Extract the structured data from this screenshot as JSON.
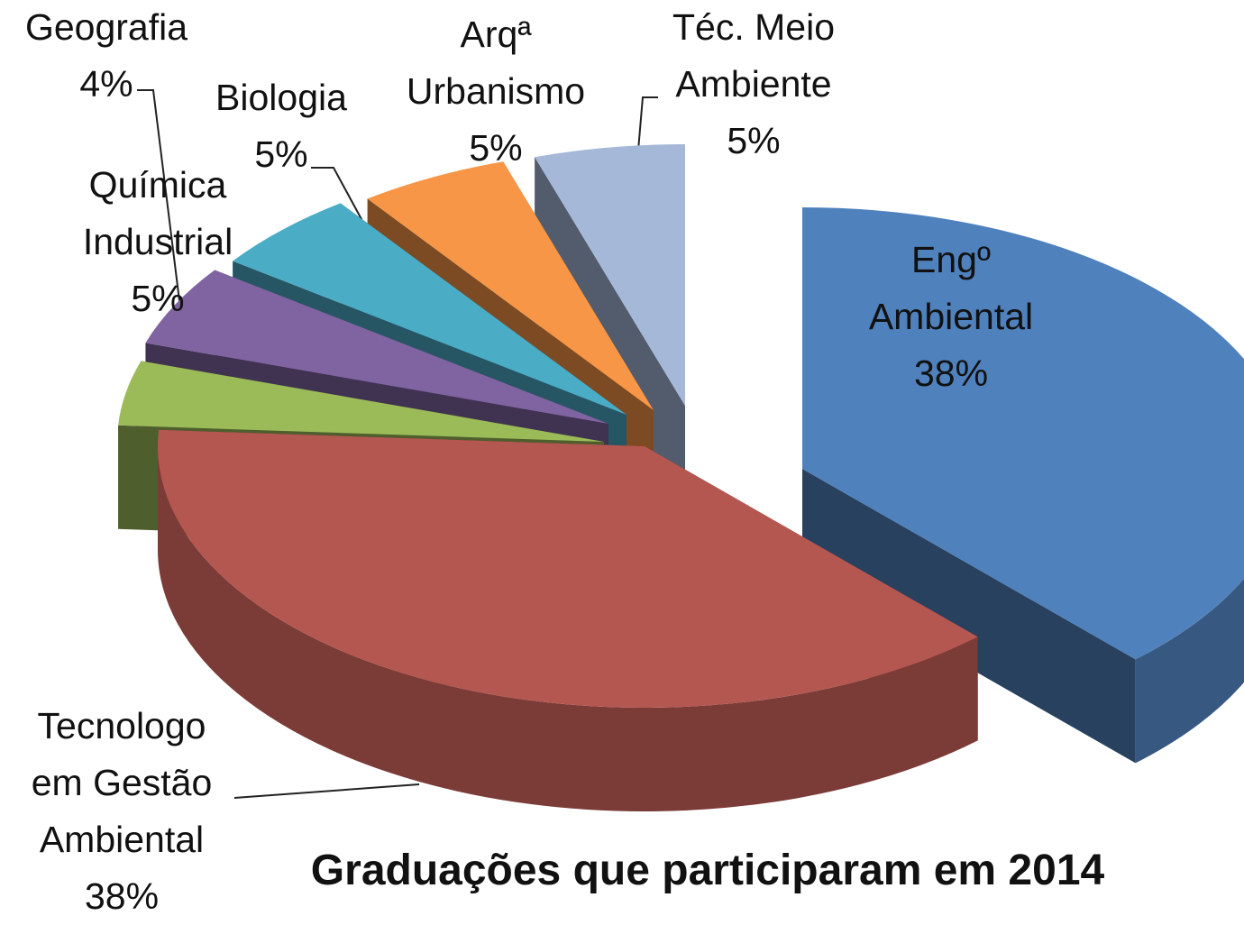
{
  "chart_data": {
    "type": "pie3d",
    "title": "Graduações que participaram em 2014",
    "categories": [
      "Engº Ambiental",
      "Tecnologo em Gestão Ambiental",
      "Geografia",
      "Química Industrial",
      "Biologia",
      "Arqª Urbanismo",
      "Téc. Meio Ambiente"
    ],
    "values": [
      38,
      38,
      4,
      5,
      5,
      5,
      5
    ],
    "value_labels": [
      "38%",
      "38%",
      "4%",
      "5%",
      "5%",
      "5%",
      "5%"
    ],
    "colors": [
      "#4f81bd",
      "#b55751",
      "#9bbb59",
      "#8064a2",
      "#4bacc6",
      "#f79646",
      "#a5b8d8"
    ]
  }
}
